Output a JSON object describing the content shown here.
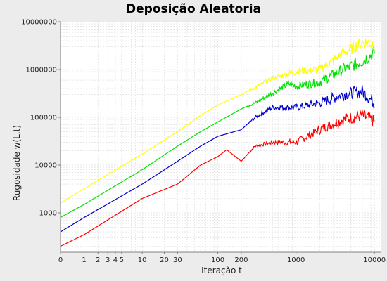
{
  "chart_data": {
    "type": "line",
    "title": "Deposição Aleatoria",
    "xlabel": "Iteração t",
    "ylabel": "Rugosidade w(L,t)",
    "x_scale": "log",
    "y_scale": "log",
    "xlim": [
      0,
      12000
    ],
    "ylim": [
      150,
      10000000
    ],
    "x_ticks": [
      {
        "value": 0,
        "label": "0"
      },
      {
        "value": 1,
        "label": "1"
      },
      {
        "value": 2,
        "label": "2"
      },
      {
        "value": 3,
        "label": "3"
      },
      {
        "value": 4,
        "label": "4"
      },
      {
        "value": 5,
        "label": "5"
      },
      {
        "value": 10,
        "label": "10"
      },
      {
        "value": 20,
        "label": "20"
      },
      {
        "value": 30,
        "label": "30"
      },
      {
        "value": 100,
        "label": "100"
      },
      {
        "value": 200,
        "label": "200"
      },
      {
        "value": 1000,
        "label": "1000"
      },
      {
        "value": 10000,
        "label": "10000"
      }
    ],
    "y_ticks": [
      {
        "value": 1000,
        "label": "1000"
      },
      {
        "value": 10000,
        "label": "10000"
      },
      {
        "value": 100000,
        "label": "100000"
      },
      {
        "value": 1000000,
        "label": "1000000"
      },
      {
        "value": 10000000,
        "label": "10000000"
      }
    ],
    "grid": true,
    "series": [
      {
        "color": "#ff0000",
        "x": [
          0,
          1,
          10,
          30,
          60,
          100,
          130,
          200,
          300,
          500,
          1000,
          2000,
          4000,
          7000,
          10000
        ],
        "y": [
          200,
          350,
          2000,
          4000,
          10000,
          15000,
          21000,
          12000,
          25000,
          30000,
          30000,
          55000,
          90000,
          110000,
          80000
        ]
      },
      {
        "color": "#0000cc",
        "x": [
          0,
          1,
          10,
          30,
          60,
          100,
          200,
          300,
          500,
          1000,
          2000,
          4000,
          7000,
          10000
        ],
        "y": [
          400,
          800,
          4000,
          12000,
          25000,
          40000,
          55000,
          100000,
          160000,
          160000,
          200000,
          300000,
          350000,
          200000
        ]
      },
      {
        "color": "#00e000",
        "x": [
          0,
          1,
          10,
          30,
          60,
          100,
          200,
          300,
          500,
          800,
          1000,
          2000,
          4000,
          7000,
          10000
        ],
        "y": [
          800,
          1500,
          8000,
          25000,
          50000,
          80000,
          150000,
          200000,
          320000,
          500000,
          450000,
          550000,
          1000000,
          1500000,
          2300000
        ]
      },
      {
        "color": "#ffff00",
        "x": [
          0,
          1,
          10,
          30,
          60,
          100,
          200,
          300,
          500,
          1000,
          2000,
          4000,
          7000,
          10000
        ],
        "y": [
          1600,
          3200,
          17000,
          50000,
          110000,
          180000,
          300000,
          420000,
          650000,
          900000,
          1000000,
          2200000,
          3700000,
          3500000
        ]
      }
    ]
  }
}
